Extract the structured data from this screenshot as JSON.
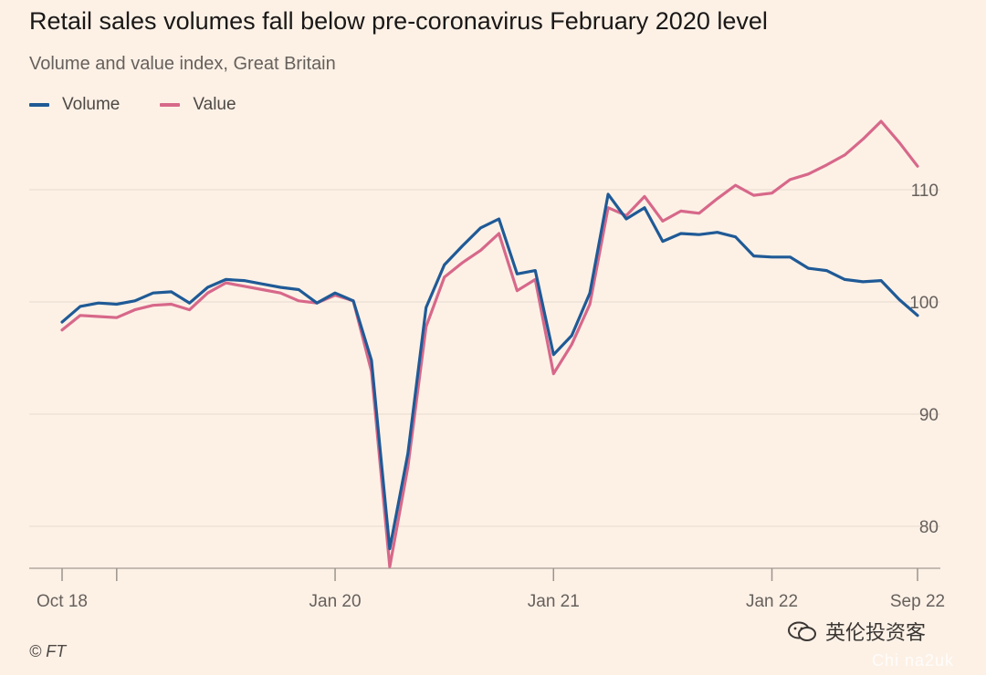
{
  "header": {
    "title": "Retail sales volumes fall below pre-coronavirus February 2020 level",
    "subtitle": "Volume and value index, Great Britain"
  },
  "footer": {
    "source": "© FT",
    "watermark": "英伦投资客",
    "watermark2": "Chi na2uk"
  },
  "colors": {
    "background": "#fdf1e6",
    "volume": "#1f5a96",
    "value": "#d7688a",
    "grid": "#e6d9ce",
    "axis": "#66605c"
  },
  "chart_data": {
    "type": "line",
    "title": "Retail sales volumes fall below pre-coronavirus February 2020 level",
    "subtitle": "Volume and value index, Great Britain",
    "xlabel": "",
    "ylabel": "",
    "y_axis_side": "right",
    "grid": "horizontal",
    "legend_position": "top-left",
    "ylim": [
      76,
      112.5
    ],
    "yticks": [
      80,
      90,
      100,
      110
    ],
    "x_tick_labels": [
      "Oct 18",
      "Jan 20",
      "Jan 21",
      "Jan 22",
      "Sep 22"
    ],
    "x_tick_dates": [
      "2018-10",
      "2020-01",
      "2021-01",
      "2022-01",
      "2022-09"
    ],
    "x_minor_ticks": [
      "2019-01"
    ],
    "x": [
      "2018-10",
      "2018-11",
      "2018-12",
      "2019-01",
      "2019-02",
      "2019-03",
      "2019-04",
      "2019-05",
      "2019-06",
      "2019-07",
      "2019-08",
      "2019-09",
      "2019-10",
      "2019-11",
      "2019-12",
      "2020-01",
      "2020-02",
      "2020-03",
      "2020-04",
      "2020-05",
      "2020-06",
      "2020-07",
      "2020-08",
      "2020-09",
      "2020-10",
      "2020-11",
      "2020-12",
      "2021-01",
      "2021-02",
      "2021-03",
      "2021-04",
      "2021-05",
      "2021-06",
      "2021-07",
      "2021-08",
      "2021-09",
      "2021-10",
      "2021-11",
      "2021-12",
      "2022-01",
      "2022-02",
      "2022-03",
      "2022-04",
      "2022-05",
      "2022-06",
      "2022-07",
      "2022-08",
      "2022-09"
    ],
    "series": [
      {
        "name": "Volume",
        "color": "#1f5a96",
        "values": [
          98.2,
          99.6,
          99.9,
          99.8,
          100.1,
          100.8,
          100.9,
          99.9,
          101.3,
          102.0,
          101.9,
          101.6,
          101.3,
          101.1,
          99.9,
          100.8,
          100.1,
          94.8,
          78.0,
          86.5,
          99.5,
          103.3,
          105.0,
          106.6,
          107.4,
          102.5,
          102.8,
          95.3,
          97.0,
          100.8,
          109.6,
          107.4,
          108.4,
          105.4,
          106.1,
          106.0,
          106.2,
          105.8,
          104.1,
          104.0,
          104.0,
          103.0,
          102.8,
          102.0,
          101.8,
          101.9,
          100.2,
          98.8
        ]
      },
      {
        "name": "Value",
        "color": "#d7688a",
        "values": [
          97.5,
          98.8,
          98.7,
          98.6,
          99.3,
          99.7,
          99.8,
          99.3,
          100.8,
          101.7,
          101.4,
          101.1,
          100.8,
          100.1,
          99.9,
          100.6,
          100.1,
          93.8,
          76.4,
          85.3,
          97.8,
          102.2,
          103.5,
          104.6,
          106.1,
          101.0,
          102.0,
          93.6,
          96.2,
          99.8,
          108.4,
          107.7,
          109.4,
          107.2,
          108.1,
          107.9,
          109.2,
          110.4,
          109.5,
          109.7,
          110.9,
          111.4,
          112.2,
          113.1,
          114.5,
          116.1,
          114.2,
          112.1
        ]
      }
    ]
  }
}
